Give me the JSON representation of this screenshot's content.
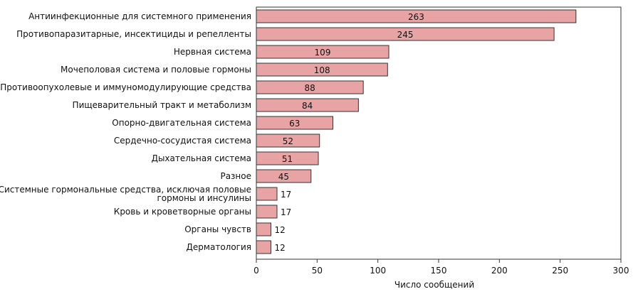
{
  "chart_data": {
    "type": "bar",
    "orientation": "horizontal",
    "categories": [
      "Антиинфекционные для системного применения",
      "Противопаразитарные, инсектициды и репелленты",
      "Нервная система",
      "Мочеполовая система и половые гормоны",
      "Противоопухолевые и иммуномодулирующие средства",
      "Пищеварительный тракт и метаболизм",
      "Опорно-двигательная система",
      "Сердечно-сосудистая система",
      "Дыхательная система",
      "Разное",
      "Системные гормональные средства, исключая половые гормоны и инсулины",
      "Кровь и кроветворные органы",
      "Органы чувств",
      "Дерматология"
    ],
    "category_lines": [
      [
        "Антиинфекционные для системного применения"
      ],
      [
        "Противопаразитарные, инсектициды и репелленты"
      ],
      [
        "Нервная система"
      ],
      [
        "Мочеполовая система и половые гормоны"
      ],
      [
        "Противоопухолевые и иммуномодулирующие средства"
      ],
      [
        "Пищеварительный тракт и метаболизм"
      ],
      [
        "Опорно-двигательная система"
      ],
      [
        "Сердечно-сосудистая система"
      ],
      [
        "Дыхательная система"
      ],
      [
        "Разное"
      ],
      [
        "Системные гормональные средства, исключая половые",
        "гормоны и инсулины"
      ],
      [
        "Кровь и кроветворные органы"
      ],
      [
        "Органы чувств"
      ],
      [
        "Дерматология"
      ]
    ],
    "values": [
      263,
      245,
      109,
      108,
      88,
      84,
      63,
      52,
      51,
      45,
      17,
      17,
      12,
      12
    ],
    "xlabel": "Число сообщений",
    "ylabel": "",
    "xlim": [
      0,
      300
    ],
    "xticks": [
      0,
      50,
      100,
      150,
      200,
      250,
      300
    ],
    "grid": false,
    "bar_color": "#e8a4a4",
    "bar_edge_color": "#333333"
  }
}
